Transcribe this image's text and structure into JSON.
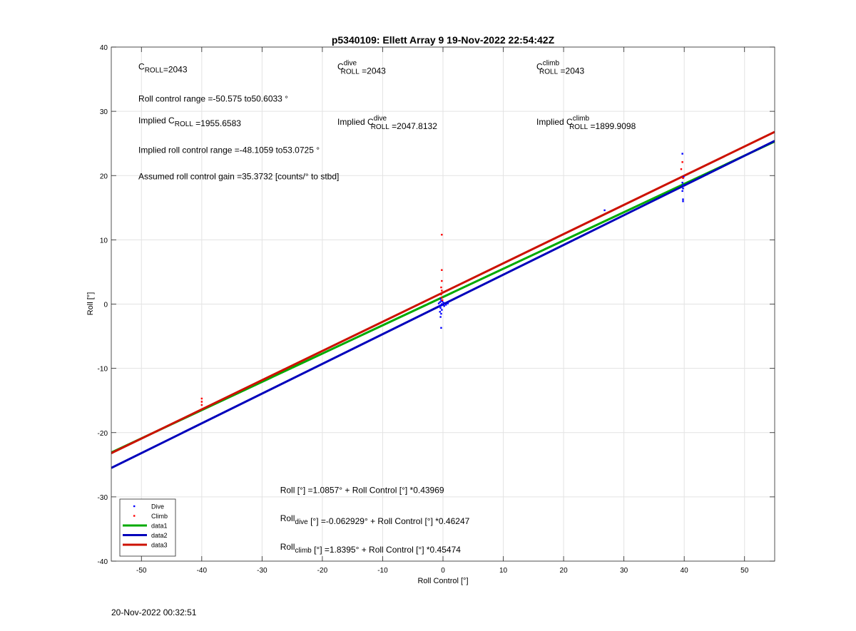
{
  "footer_timestamp": "20-Nov-2022 00:32:51",
  "chart_data": {
    "type": "scatter",
    "title": "p5340109: Ellett Array 9 19-Nov-2022 22:54:42Z",
    "xlabel": "Roll Control [°]",
    "ylabel": "Roll [°]",
    "xlim": [
      -55,
      55
    ],
    "ylim": [
      -40,
      40
    ],
    "xticks": [
      -50,
      -40,
      -30,
      -20,
      -10,
      0,
      10,
      20,
      30,
      40,
      50
    ],
    "yticks": [
      -40,
      -30,
      -20,
      -10,
      0,
      10,
      20,
      30,
      40
    ],
    "grid": true,
    "legend_position": "bottom-left",
    "legend": [
      {
        "label": "Dive",
        "kind": "marker",
        "color": "#0000ff"
      },
      {
        "label": "Climb",
        "kind": "marker",
        "color": "#ff0000"
      },
      {
        "label": "data1",
        "kind": "line",
        "color": "#00aa00"
      },
      {
        "label": "data2",
        "kind": "line",
        "color": "#0000bb"
      },
      {
        "label": "data3",
        "kind": "line",
        "color": "#cc1100"
      }
    ],
    "series": [
      {
        "name": "Dive",
        "kind": "scatter",
        "color": "#0000ff",
        "points": [
          [
            -0.5,
            0.3
          ],
          [
            -0.3,
            -0.2
          ],
          [
            -0.4,
            0.8
          ],
          [
            -0.2,
            -0.9
          ],
          [
            -0.6,
            -0.4
          ],
          [
            0.1,
            0.2
          ],
          [
            -0.3,
            0.5
          ],
          [
            -0.5,
            -1.2
          ],
          [
            -0.4,
            -0.6
          ],
          [
            -0.2,
            0.0
          ],
          [
            0.2,
            -0.3
          ],
          [
            -0.1,
            0.4
          ],
          [
            -0.3,
            -1.5
          ],
          [
            -0.4,
            -2.0
          ],
          [
            -0.3,
            -3.7
          ],
          [
            0.5,
            -0.1
          ],
          [
            0.8,
            0.1
          ],
          [
            -0.7,
            0.1
          ],
          [
            26.8,
            14.6
          ],
          [
            39.7,
            23.4
          ],
          [
            39.8,
            18.0
          ],
          [
            39.8,
            18.5
          ],
          [
            39.7,
            17.6
          ],
          [
            39.8,
            16.3
          ],
          [
            39.8,
            16.0
          ],
          [
            39.9,
            19.8
          ],
          [
            39.7,
            18.9
          ]
        ]
      },
      {
        "name": "Climb",
        "kind": "scatter",
        "color": "#ff0000",
        "points": [
          [
            -40,
            -14.7
          ],
          [
            -40,
            -15.2
          ],
          [
            -40,
            -15.7
          ],
          [
            -0.2,
            10.8
          ],
          [
            -0.2,
            5.3
          ],
          [
            -0.2,
            3.6
          ],
          [
            -0.3,
            2.6
          ],
          [
            -0.2,
            2.1
          ],
          [
            -0.3,
            1.5
          ],
          [
            -0.2,
            1.0
          ],
          [
            -0.1,
            0.6
          ],
          [
            39.7,
            22.1
          ],
          [
            39.5,
            21.0
          ],
          [
            39.8,
            19.6
          ]
        ]
      },
      {
        "name": "data1",
        "kind": "line",
        "color": "#00aa00",
        "x": [
          -55,
          55
        ],
        "y": [
          -23.1,
          25.3
        ]
      },
      {
        "name": "data2",
        "kind": "line",
        "color": "#0000bb",
        "x": [
          -55,
          55
        ],
        "y": [
          -25.5,
          25.4
        ]
      },
      {
        "name": "data3",
        "kind": "line",
        "color": "#cc1100",
        "x": [
          -55,
          55
        ],
        "y": [
          -23.2,
          26.8
        ]
      }
    ],
    "annotations": [
      {
        "id": "c_roll",
        "x": -50.5,
        "y": 36.5,
        "parts": [
          {
            "t": "C"
          },
          {
            "t": "ROLL",
            "sub": true
          },
          {
            "t": "=2043"
          }
        ]
      },
      {
        "id": "c_roll_dive",
        "x": -17.5,
        "y": 36.5,
        "parts": [
          {
            "t": "C"
          },
          {
            "t": "dive",
            "sup": true,
            "stack": "ROLL"
          },
          {
            "t": " =2043"
          }
        ]
      },
      {
        "id": "c_roll_climb",
        "x": 15.5,
        "y": 36.5,
        "parts": [
          {
            "t": "C"
          },
          {
            "t": "climb",
            "sup": true,
            "stack": "ROLL"
          },
          {
            "t": " =2043"
          }
        ]
      },
      {
        "id": "roll_range",
        "x": -50.5,
        "y": 31.5,
        "parts": [
          {
            "t": "Roll control range =-50.575 to50.6033 °"
          }
        ]
      },
      {
        "id": "implied_c_roll",
        "x": -50.5,
        "y": 28.1,
        "parts": [
          {
            "t": "Implied C"
          },
          {
            "t": "ROLL",
            "sub": true
          },
          {
            "t": " =1955.6583"
          }
        ]
      },
      {
        "id": "implied_c_roll_dive",
        "x": -17.5,
        "y": 27.9,
        "parts": [
          {
            "t": "Implied C"
          },
          {
            "t": "dive",
            "sup": true,
            "stack": "ROLL"
          },
          {
            "t": " =2047.8132"
          }
        ]
      },
      {
        "id": "implied_c_roll_climb",
        "x": 15.5,
        "y": 27.9,
        "parts": [
          {
            "t": "Implied C"
          },
          {
            "t": "climb",
            "sup": true,
            "stack": "ROLL"
          },
          {
            "t": " =1899.9098"
          }
        ]
      },
      {
        "id": "implied_range",
        "x": -50.5,
        "y": 23.5,
        "parts": [
          {
            "t": "Implied roll control range =-48.1059 to53.0725 °"
          }
        ]
      },
      {
        "id": "gain",
        "x": -50.5,
        "y": 19.4,
        "parts": [
          {
            "t": "Assumed roll control gain =35.3732 [counts/° to stbd]"
          }
        ]
      },
      {
        "id": "fit_all",
        "x": -27,
        "y": -29.4,
        "parts": [
          {
            "t": "Roll [°] =1.0857° + Roll Control [°] *0.43969"
          }
        ]
      },
      {
        "id": "fit_dive",
        "x": -27,
        "y": -33.8,
        "parts": [
          {
            "t": "Roll"
          },
          {
            "t": "dive",
            "sub": true
          },
          {
            "t": " [°] =-0.062929° + Roll Control [°] *0.46247"
          }
        ]
      },
      {
        "id": "fit_climb",
        "x": -27,
        "y": -38.2,
        "parts": [
          {
            "t": "Roll"
          },
          {
            "t": "climb",
            "sub": true
          },
          {
            "t": " [°] =1.8395° + Roll Control [°] *0.45474"
          }
        ]
      }
    ]
  }
}
